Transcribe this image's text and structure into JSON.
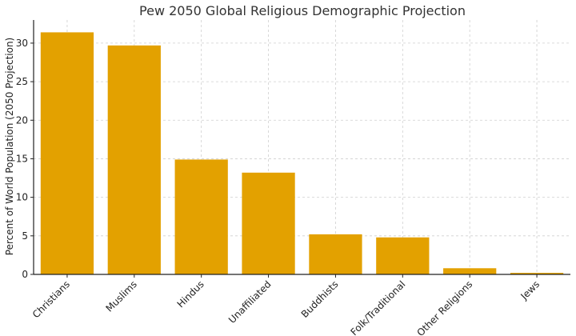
{
  "chart_data": {
    "type": "bar",
    "title": "Pew 2050 Global Religious Demographic Projection",
    "xlabel": "",
    "ylabel": "Percent of World Population (2050 Projection)",
    "categories": [
      "Christians",
      "Muslims",
      "Hindus",
      "Unaffiliated",
      "Buddhists",
      "Folk/Traditional",
      "Other Religions",
      "Jews"
    ],
    "values": [
      31.4,
      29.7,
      14.9,
      13.2,
      5.2,
      4.8,
      0.8,
      0.2
    ],
    "ylim": [
      0,
      33
    ],
    "yticks": [
      0,
      5,
      10,
      15,
      20,
      25,
      30
    ],
    "grid": true,
    "bar_color": "#E3A100"
  }
}
